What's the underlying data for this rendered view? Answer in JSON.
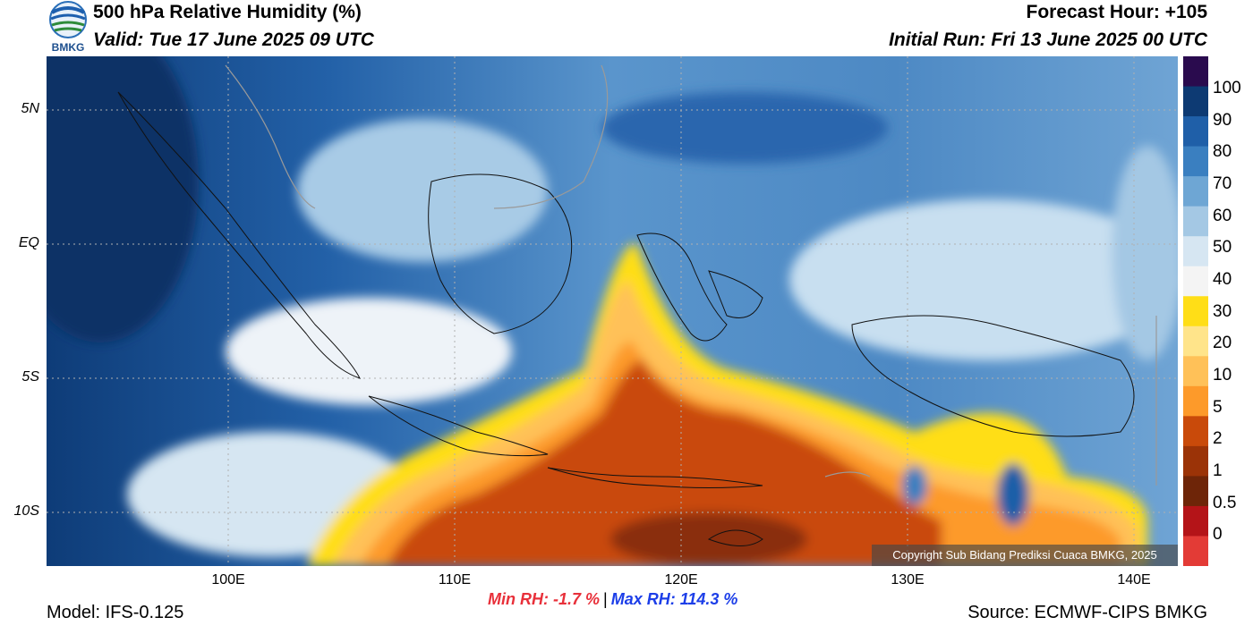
{
  "header": {
    "title": "500 hPa Relative Humidity (%)",
    "valid": "Valid: Tue 17 June 2025 09 UTC",
    "forecast_hour": "Forecast Hour: +105",
    "initial_run": "Initial Run: Fri 13 June 2025 00 UTC"
  },
  "logo": {
    "text": "BMKG",
    "icon": "bmkg-logo-icon"
  },
  "axes": {
    "lat_labels": [
      "5N",
      "EQ",
      "5S",
      "10S"
    ],
    "lon_labels": [
      "100E",
      "110E",
      "120E",
      "130E",
      "140E"
    ],
    "lon_range": [
      92,
      142
    ],
    "lat_range": [
      -12,
      7
    ]
  },
  "colorbar": {
    "labels": [
      "100",
      "90",
      "80",
      "70",
      "60",
      "50",
      "40",
      "30",
      "20",
      "10",
      "5",
      "2",
      "1",
      "0.5",
      "0"
    ],
    "colors": [
      "#2a0b4e",
      "#0d3a73",
      "#1f5fa8",
      "#3a7fc0",
      "#6ea6d4",
      "#a4c8e4",
      "#d6e6f2",
      "#f4f4f4",
      "#ffde17",
      "#ffe48a",
      "#ffc158",
      "#fd9a2a",
      "#c94a0a",
      "#9b3307",
      "#6e2508",
      "#b41418",
      "#e33b36"
    ]
  },
  "minmax": {
    "min": "Min RH:  -1.7 %",
    "separator": "|",
    "max": "Max RH: 114.3 %"
  },
  "footer": {
    "model": "Model: IFS-0.125",
    "source": "Source: ECMWF-CIPS BMKG",
    "copyright": "Copyright Sub Bidang Prediksi Cuaca BMKG, 2025"
  }
}
